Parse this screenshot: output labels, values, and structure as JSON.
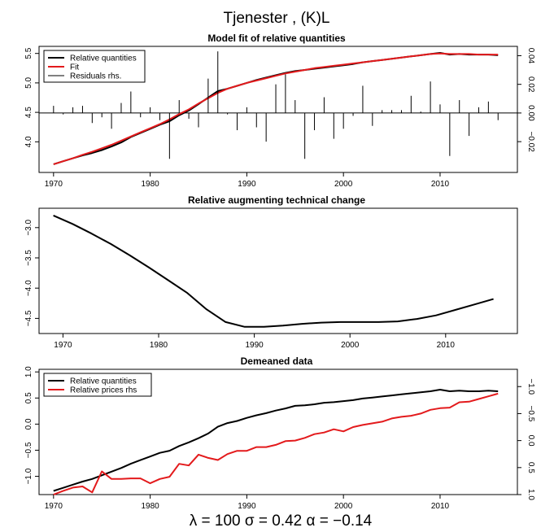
{
  "title": "Tjenester , (K)L",
  "footer": "λ = 100   σ = 0.42   α = −0.14",
  "colors": {
    "black": "#000000",
    "red": "#e31a1c"
  },
  "chart_data": [
    {
      "type": "line",
      "title": "Model fit of relative quantities",
      "xlim": [
        1968.5,
        2018
      ],
      "ylim": [
        3.48,
        5.62
      ],
      "y2lim": [
        -0.0415,
        0.0465
      ],
      "x_ticks": [
        1970,
        1980,
        1990,
        2000,
        2010
      ],
      "y_ticks": [
        4.0,
        4.5,
        5.0,
        5.5
      ],
      "y_tick_labels": [
        "4.0",
        "4.5",
        "5.0",
        "5.5"
      ],
      "y2_ticks": [
        -0.02,
        0.0,
        0.02,
        0.04
      ],
      "y2_tick_labels": [
        "−0.02",
        "0.00",
        "0.02",
        "0.04"
      ],
      "legend": {
        "position": "top-left",
        "entries": [
          "Relative quantities",
          "Fit",
          "Residuals rhs."
        ]
      },
      "x": [
        1970,
        1971,
        1972,
        1973,
        1974,
        1975,
        1976,
        1977,
        1978,
        1979,
        1980,
        1981,
        1982,
        1983,
        1984,
        1985,
        1986,
        1987,
        1988,
        1989,
        1990,
        1991,
        1992,
        1993,
        1994,
        1995,
        1996,
        1997,
        1998,
        1999,
        2000,
        2001,
        2002,
        2003,
        2004,
        2005,
        2006,
        2007,
        2008,
        2009,
        2010,
        2011,
        2012,
        2013,
        2014,
        2015,
        2016
      ],
      "series": [
        {
          "name": "Relative quantities",
          "color": "#000000",
          "values": [
            3.62,
            3.67,
            3.72,
            3.77,
            3.81,
            3.86,
            3.92,
            3.99,
            4.08,
            4.15,
            4.22,
            4.29,
            4.35,
            4.45,
            4.53,
            4.64,
            4.75,
            4.86,
            4.9,
            4.95,
            5.0,
            5.05,
            5.09,
            5.13,
            5.17,
            5.2,
            5.22,
            5.24,
            5.26,
            5.28,
            5.3,
            5.32,
            5.35,
            5.37,
            5.39,
            5.41,
            5.43,
            5.45,
            5.47,
            5.49,
            5.51,
            5.48,
            5.49,
            5.48,
            5.48,
            5.48,
            5.47
          ]
        },
        {
          "name": "Fit",
          "color": "#e31a1c",
          "values": [
            3.62,
            3.67,
            3.72,
            3.78,
            3.83,
            3.89,
            3.95,
            4.02,
            4.09,
            4.16,
            4.23,
            4.3,
            4.38,
            4.47,
            4.55,
            4.65,
            4.74,
            4.83,
            4.9,
            4.95,
            5.0,
            5.04,
            5.08,
            5.12,
            5.16,
            5.19,
            5.22,
            5.25,
            5.27,
            5.29,
            5.31,
            5.33,
            5.35,
            5.37,
            5.39,
            5.41,
            5.43,
            5.45,
            5.47,
            5.49,
            5.5,
            5.49,
            5.49,
            5.49,
            5.48,
            5.48,
            5.48
          ]
        },
        {
          "name": "Residuals rhs.",
          "color": "#000000",
          "type": "bar",
          "values": [
            0.005,
            -0.001,
            0.004,
            0.005,
            -0.007,
            -0.003,
            -0.011,
            0.007,
            0.015,
            -0.003,
            0.004,
            -0.005,
            -0.032,
            0.009,
            -0.004,
            -0.01,
            0.024,
            0.043,
            -0.001,
            -0.012,
            0.004,
            -0.01,
            -0.02,
            0.02,
            0.027,
            0.009,
            -0.032,
            -0.012,
            0.011,
            -0.018,
            -0.011,
            -0.002,
            0.019,
            -0.009,
            0.002,
            0.002,
            0.002,
            0.012,
            0.001,
            0.022,
            0.006,
            -0.03,
            0.009,
            -0.016,
            0.004,
            0.008,
            -0.005
          ]
        }
      ]
    },
    {
      "type": "line",
      "title": "Relative augmenting technical change",
      "xlim": [
        1967.5,
        2017.5
      ],
      "ylim": [
        -4.75,
        -2.68
      ],
      "x_ticks": [
        1970,
        1980,
        1990,
        2000,
        2010
      ],
      "y_ticks": [
        -3.0,
        -3.5,
        -4.0,
        -4.5
      ],
      "y_tick_labels": [
        "−3.0",
        "−3.5",
        "−4.0",
        "−4.5"
      ],
      "x": [
        1969,
        1971,
        1973,
        1975,
        1977,
        1979,
        1981,
        1983,
        1985,
        1987,
        1989,
        1991,
        1993,
        1995,
        1997,
        1999,
        2001,
        2003,
        2005,
        2007,
        2009,
        2011,
        2013,
        2015
      ],
      "series": [
        {
          "name": "",
          "color": "#000000",
          "values": [
            -2.8,
            -2.94,
            -3.1,
            -3.27,
            -3.46,
            -3.66,
            -3.87,
            -4.08,
            -4.35,
            -4.56,
            -4.64,
            -4.64,
            -4.62,
            -4.59,
            -4.57,
            -4.56,
            -4.56,
            -4.56,
            -4.55,
            -4.51,
            -4.45,
            -4.36,
            -4.27,
            -4.18
          ]
        }
      ]
    },
    {
      "type": "line",
      "title": "Demeaned data",
      "xlim": [
        1968.5,
        2018
      ],
      "ylim": [
        -1.35,
        1.05
      ],
      "y2lim": [
        1.0,
        -1.32
      ],
      "x_ticks": [
        1970,
        1980,
        1990,
        2000,
        2010
      ],
      "y_ticks": [
        1.0,
        0.5,
        0.0,
        -0.5,
        -1.0
      ],
      "y_tick_labels": [
        "1.0",
        "0.5",
        "0.0",
        "−0.5",
        "−1.0"
      ],
      "y2_ticks": [
        -1.0,
        -0.5,
        0.0,
        0.5,
        1.0
      ],
      "y2_tick_labels": [
        "−1.0",
        "−0.5",
        "0.0",
        "0.5",
        "1.0"
      ],
      "legend": {
        "position": "top-left",
        "entries": [
          "Relative quantities",
          "Relative prices rhs"
        ]
      },
      "x": [
        1970,
        1971,
        1972,
        1973,
        1974,
        1975,
        1976,
        1977,
        1978,
        1979,
        1980,
        1981,
        1982,
        1983,
        1984,
        1985,
        1986,
        1987,
        1988,
        1989,
        1990,
        1991,
        1992,
        1993,
        1994,
        1995,
        1996,
        1997,
        1998,
        1999,
        2000,
        2001,
        2002,
        2003,
        2004,
        2005,
        2006,
        2007,
        2008,
        2009,
        2010,
        2011,
        2012,
        2013,
        2014,
        2015,
        2016
      ],
      "series": [
        {
          "name": "Relative quantities",
          "color": "#000000",
          "values": [
            -1.28,
            -1.22,
            -1.16,
            -1.1,
            -1.05,
            -0.98,
            -0.91,
            -0.84,
            -0.76,
            -0.69,
            -0.62,
            -0.55,
            -0.51,
            -0.42,
            -0.35,
            -0.27,
            -0.18,
            -0.05,
            0.02,
            0.06,
            0.12,
            0.17,
            0.21,
            0.26,
            0.3,
            0.35,
            0.36,
            0.38,
            0.41,
            0.42,
            0.44,
            0.46,
            0.49,
            0.51,
            0.53,
            0.55,
            0.57,
            0.59,
            0.61,
            0.63,
            0.66,
            0.63,
            0.64,
            0.63,
            0.63,
            0.64,
            0.63
          ]
        },
        {
          "name": "Relative prices rhs",
          "color": "#e31a1c",
          "y_axis": "right",
          "values": [
            1.0,
            0.93,
            0.87,
            0.85,
            0.96,
            0.57,
            0.71,
            0.71,
            0.7,
            0.7,
            0.79,
            0.71,
            0.67,
            0.43,
            0.46,
            0.26,
            0.32,
            0.36,
            0.25,
            0.19,
            0.19,
            0.12,
            0.12,
            0.08,
            0.01,
            0.0,
            -0.05,
            -0.12,
            -0.15,
            -0.21,
            -0.17,
            -0.25,
            -0.29,
            -0.32,
            -0.35,
            -0.41,
            -0.44,
            -0.46,
            -0.5,
            -0.57,
            -0.6,
            -0.61,
            -0.71,
            -0.72,
            -0.77,
            -0.82,
            -0.87
          ]
        }
      ]
    }
  ]
}
